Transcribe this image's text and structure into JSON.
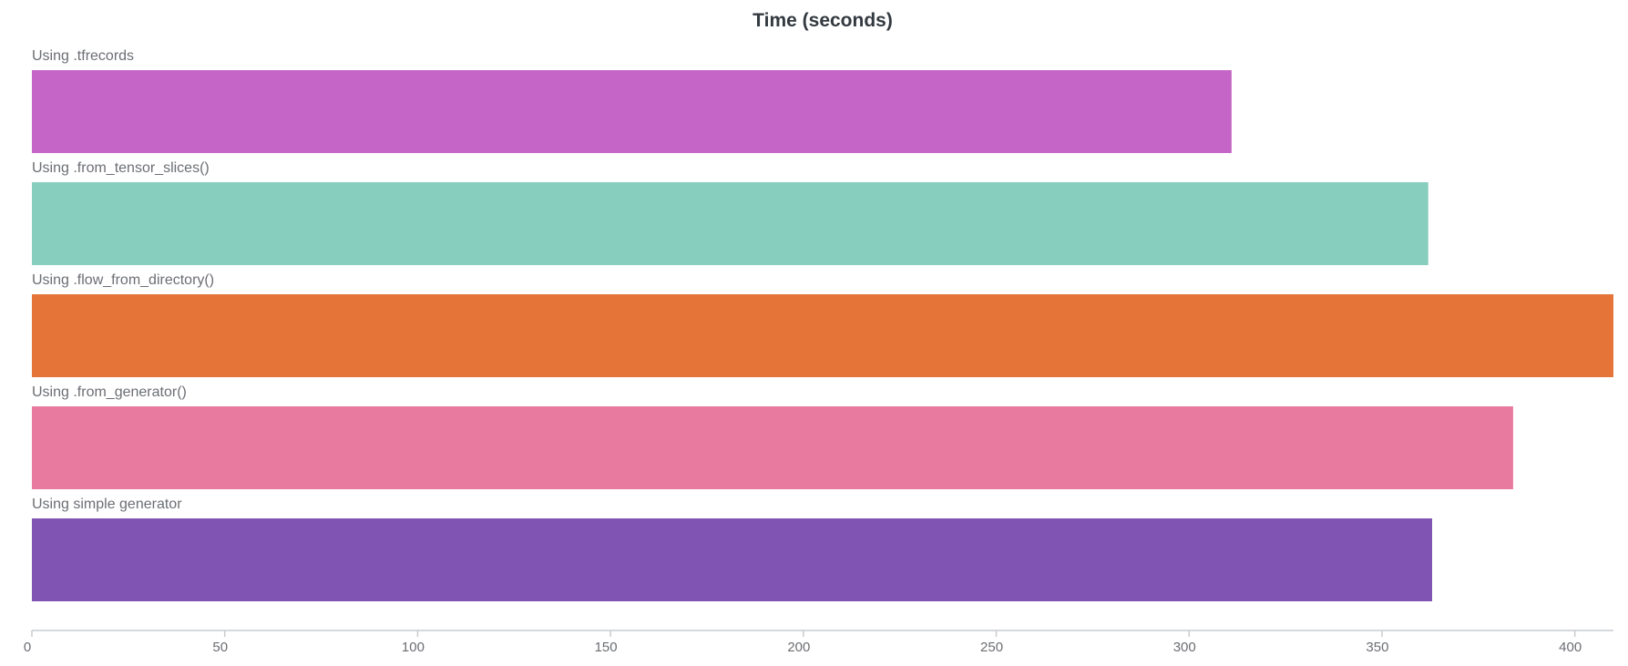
{
  "chart_data": {
    "type": "bar",
    "orientation": "horizontal",
    "title": "Time (seconds)",
    "xlabel": "",
    "ylabel": "",
    "xlim": [
      0,
      410
    ],
    "xticks": [
      0,
      50,
      100,
      150,
      200,
      250,
      300,
      350,
      400
    ],
    "grid": false,
    "categories": [
      "Using .tfrecords",
      "Using .from_tensor_slices()",
      "Using .flow_from_directory()",
      "Using .from_generator()",
      "Using simple generator"
    ],
    "values": [
      311,
      362,
      410,
      384,
      363
    ],
    "colors": [
      "#c565c7",
      "#87cebf",
      "#e57439",
      "#e87a9f",
      "#7f54b3"
    ]
  }
}
